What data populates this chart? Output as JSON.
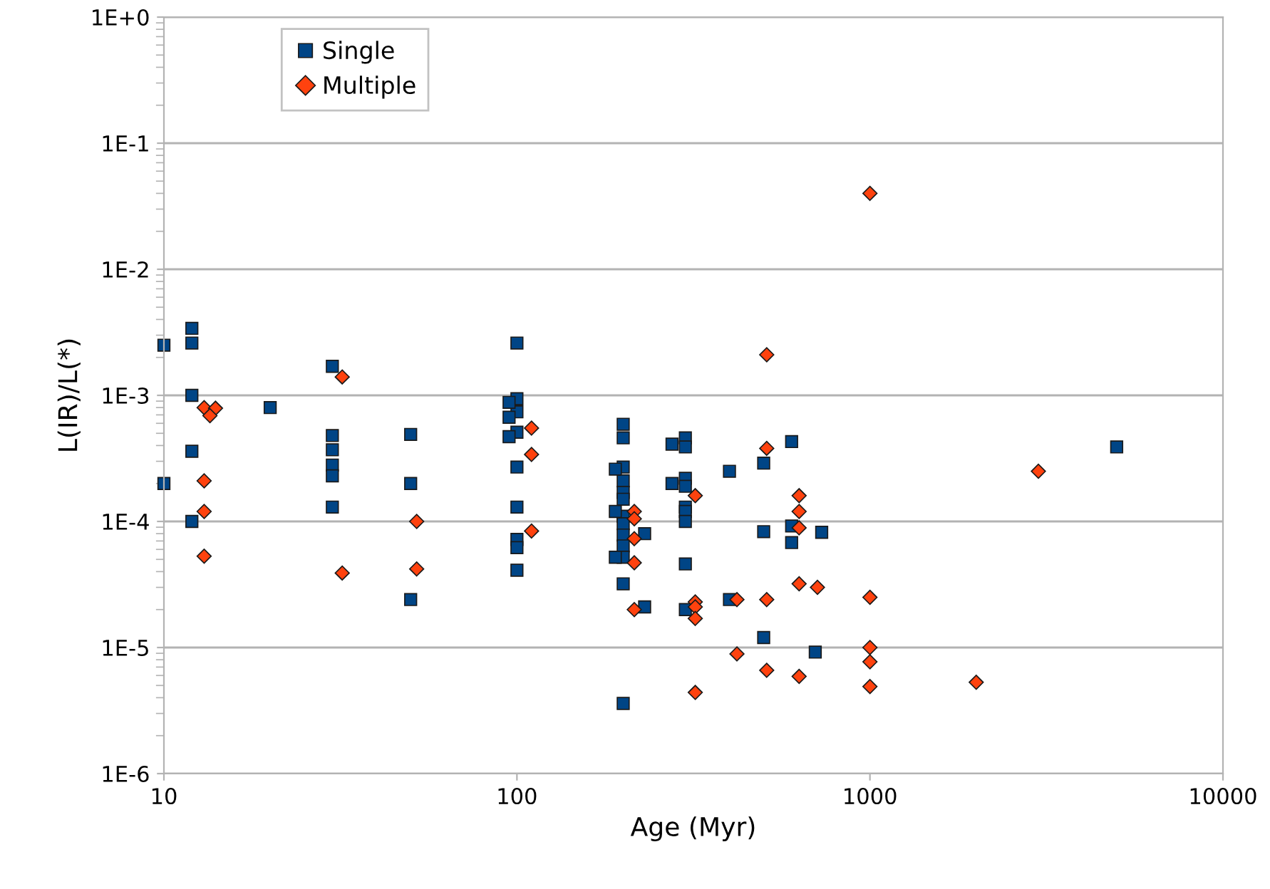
{
  "chart_data": {
    "type": "scatter",
    "xlabel": "Age (Myr)",
    "ylabel": "L(IR)/L(*)",
    "log": "xy",
    "grid": "y",
    "legend": "top left",
    "xlim": [
      10,
      10000
    ],
    "xticks": [
      10,
      100,
      1000,
      10000
    ],
    "ylim": [
      1e-06,
      1
    ],
    "yticks": [
      {
        "value": 1e-06,
        "label": "1E-6"
      },
      {
        "value": 1e-05,
        "label": "1E-5"
      },
      {
        "value": 0.0001,
        "label": "1E-4"
      },
      {
        "value": 0.001,
        "label": "1E-3"
      },
      {
        "value": 0.01,
        "label": "1E-2"
      },
      {
        "value": 0.1,
        "label": "1E-1"
      },
      {
        "value": 1,
        "label": "1E+0"
      }
    ],
    "series": [
      {
        "name": "Single",
        "color": "#004586",
        "marker": "square",
        "x": [
          10,
          10,
          12,
          12,
          12,
          12,
          12,
          20,
          30,
          30,
          30,
          30,
          30,
          30,
          50,
          50,
          50,
          100,
          100,
          100,
          100,
          100,
          100,
          100,
          100,
          100,
          95,
          95,
          95,
          200,
          200,
          200,
          200,
          200,
          200,
          200,
          200,
          200,
          200,
          200,
          200,
          200,
          190,
          190,
          190,
          230,
          230,
          275,
          275,
          300,
          300,
          300,
          300,
          300,
          300,
          300,
          300,
          300,
          400,
          400,
          500,
          500,
          500,
          600,
          600,
          600,
          730,
          700,
          5000
        ],
        "values": [
          0.0025,
          0.0002,
          0.0034,
          0.0026,
          0.001,
          0.00036,
          0.0001,
          0.0008,
          0.0017,
          0.00048,
          0.00037,
          0.00028,
          0.00023,
          0.00013,
          0.00049,
          0.0002,
          2.4e-05,
          0.0026,
          0.00094,
          0.00074,
          0.00051,
          0.00027,
          0.00013,
          7.2e-05,
          6.2e-05,
          4.1e-05,
          0.00088,
          0.00067,
          0.00047,
          0.00059,
          0.00046,
          0.00027,
          0.00021,
          0.00017,
          0.00015,
          0.00011,
          9.6e-05,
          7.8e-05,
          6.4e-05,
          5.2e-05,
          3.2e-05,
          3.6e-06,
          0.00026,
          0.00012,
          5.2e-05,
          8e-05,
          2.1e-05,
          0.00041,
          0.0002,
          0.00046,
          0.00039,
          0.00022,
          0.00019,
          0.00013,
          0.00012,
          0.0001,
          4.6e-05,
          2e-05,
          0.00025,
          2.4e-05,
          0.00029,
          8.3e-05,
          1.2e-05,
          0.00043,
          9.2e-05,
          6.8e-05,
          8.2e-05,
          9.2e-06,
          0.00039
        ]
      },
      {
        "name": "Multiple",
        "color": "#ff420e",
        "marker": "diamond",
        "x": [
          13,
          14,
          13.5,
          13,
          13,
          13,
          32,
          32,
          52,
          52,
          110,
          110,
          110,
          215,
          215,
          215,
          215,
          215,
          320,
          320,
          320,
          320,
          320,
          420,
          420,
          510,
          510,
          510,
          510,
          630,
          630,
          630,
          630,
          630,
          710,
          1000,
          1000,
          1000,
          1000,
          1000,
          2000,
          3000
        ],
        "values": [
          0.0008,
          0.00079,
          0.00069,
          0.00021,
          0.00012,
          5.3e-05,
          0.0014,
          3.9e-05,
          0.0001,
          4.2e-05,
          0.00055,
          0.00034,
          8.4e-05,
          0.00012,
          0.000105,
          7.3e-05,
          4.7e-05,
          2e-05,
          0.00016,
          2.3e-05,
          2.1e-05,
          1.7e-05,
          4.4e-06,
          2.4e-05,
          8.9e-06,
          0.0021,
          0.00038,
          2.4e-05,
          6.6e-06,
          0.00016,
          0.00012,
          8.9e-05,
          3.2e-05,
          5.9e-06,
          3e-05,
          0.04,
          2.5e-05,
          1e-05,
          7.7e-06,
          4.9e-06,
          5.3e-06,
          0.00025
        ]
      }
    ]
  }
}
